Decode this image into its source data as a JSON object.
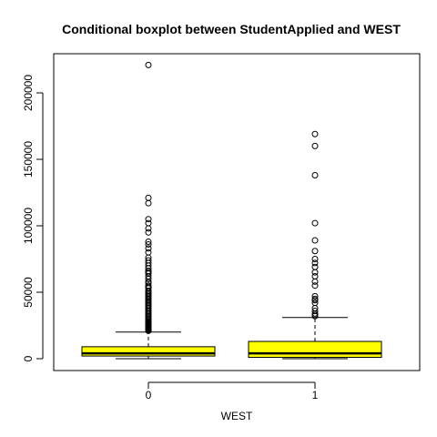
{
  "chart_data": {
    "type": "boxplot",
    "title": "Conditional boxplot between StudentApplied and WEST",
    "xlabel": "WEST",
    "ylabel": "",
    "categories": [
      "0",
      "1"
    ],
    "ylim": [
      -8000,
      228000
    ],
    "yticks": [
      0,
      50000,
      100000,
      150000,
      200000
    ],
    "ytick_labels": [
      "0",
      "50000",
      "100000",
      "150000",
      "200000"
    ],
    "box_fill": "#ffff00",
    "grid": false,
    "boxes": [
      {
        "category": "0",
        "whisker_low": 0,
        "q1": 2000,
        "median": 4000,
        "q3": 9000,
        "whisker_high": 20000,
        "outliers": [
          221000,
          121000,
          117000,
          105000,
          102000,
          98000,
          95000,
          88000,
          86000,
          83000,
          80000,
          76000,
          74000,
          72000,
          70000,
          68000,
          66000,
          65000,
          64000,
          62000,
          60000,
          58000,
          57000,
          55000,
          54000,
          53000,
          51000,
          50000,
          49000,
          48000,
          47000,
          46000,
          45000,
          44000,
          43000,
          42000,
          41000,
          40000,
          39000,
          38000,
          37000,
          36000,
          35000,
          34000,
          33000,
          32000,
          31000,
          30000,
          29000,
          28000,
          27500,
          27000,
          26500,
          26000,
          25500,
          25000,
          24500,
          24000,
          23500,
          23000,
          22500,
          22000,
          21500,
          21000
        ]
      },
      {
        "category": "1",
        "whisker_low": 0,
        "q1": 1000,
        "median": 4000,
        "q3": 13000,
        "whisker_high": 31000,
        "outliers": [
          169000,
          160000,
          138000,
          102000,
          89000,
          81000,
          75000,
          72000,
          69000,
          65000,
          62000,
          58000,
          55000,
          47000,
          45000,
          44000,
          42000,
          38000,
          36000,
          34000,
          33000,
          32000
        ]
      }
    ]
  }
}
